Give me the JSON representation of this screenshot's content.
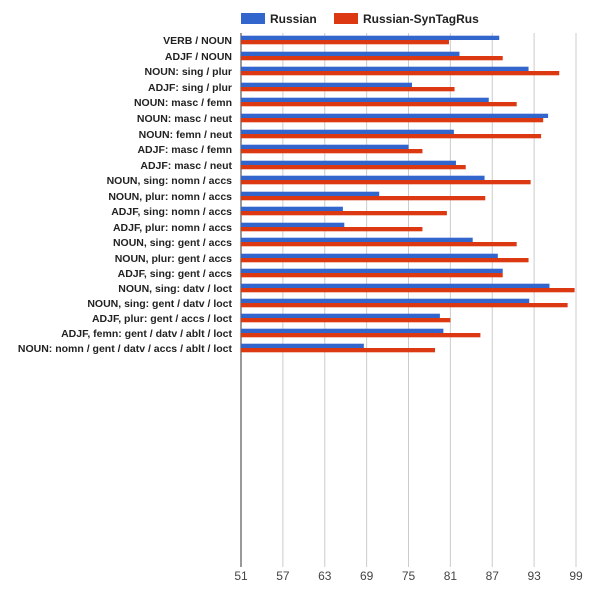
{
  "chart_data": {
    "type": "bar",
    "orientation": "horizontal",
    "title": "",
    "xlabel": "",
    "ylabel": "",
    "xlim": [
      51,
      99
    ],
    "x_ticks": [
      51,
      57,
      63,
      69,
      75,
      81,
      87,
      93,
      99
    ],
    "grid": true,
    "legend_position": "top",
    "colors": {
      "Russian": "#3366cc",
      "Russian-SynTagRus": "#dc3912"
    },
    "groups": [
      {
        "categories": [
          "VERB / NOUN",
          "ADJF / NOUN"
        ]
      },
      {
        "categories": [
          "NOUN: sing / plur",
          "ADJF: sing / plur"
        ]
      },
      {
        "categories": [
          "NOUN: masc / femn",
          "NOUN: masc / neut",
          "NOUN: femn / neut"
        ]
      },
      {
        "categories": [
          "ADJF: masc / femn",
          "ADJF: masc / neut"
        ]
      },
      {
        "categories": [
          "NOUN, sing: nomn / accs",
          "NOUN, plur: nomn / accs"
        ]
      },
      {
        "categories": [
          "ADJF, sing: nomn / accs",
          "ADJF, plur: nomn / accs"
        ]
      },
      {
        "categories": [
          "NOUN, sing: gent / accs",
          "NOUN, plur: gent / accs"
        ]
      },
      {
        "categories": [
          "ADJF, sing: gent / accs"
        ]
      },
      {
        "categories": [
          "NOUN, sing: datv / loct"
        ]
      },
      {
        "categories": [
          "NOUN, sing: gent / datv / loct"
        ]
      },
      {
        "categories": [
          "ADJF, plur: gent / accs / loct"
        ]
      },
      {
        "categories": [
          "ADJF, femn: gent / datv / ablt / loct"
        ]
      },
      {
        "categories": [
          "NOUN: nomn / gent / datv / accs / ablt / loct"
        ]
      }
    ],
    "series": [
      {
        "name": "Russian",
        "values": [
          88.0,
          82.3,
          92.2,
          75.5,
          86.5,
          95.0,
          81.5,
          75.0,
          81.8,
          85.9,
          70.8,
          65.6,
          65.8,
          84.2,
          87.8,
          88.5,
          95.2,
          92.3,
          79.5,
          80.0,
          68.6
        ]
      },
      {
        "name": "Russian-SynTagRus",
        "values": [
          80.8,
          88.5,
          96.6,
          81.6,
          90.5,
          94.3,
          94.0,
          77.0,
          83.2,
          92.5,
          86.0,
          80.5,
          77.0,
          90.5,
          92.2,
          88.5,
          98.8,
          97.8,
          81.0,
          85.3,
          78.8
        ]
      }
    ]
  }
}
